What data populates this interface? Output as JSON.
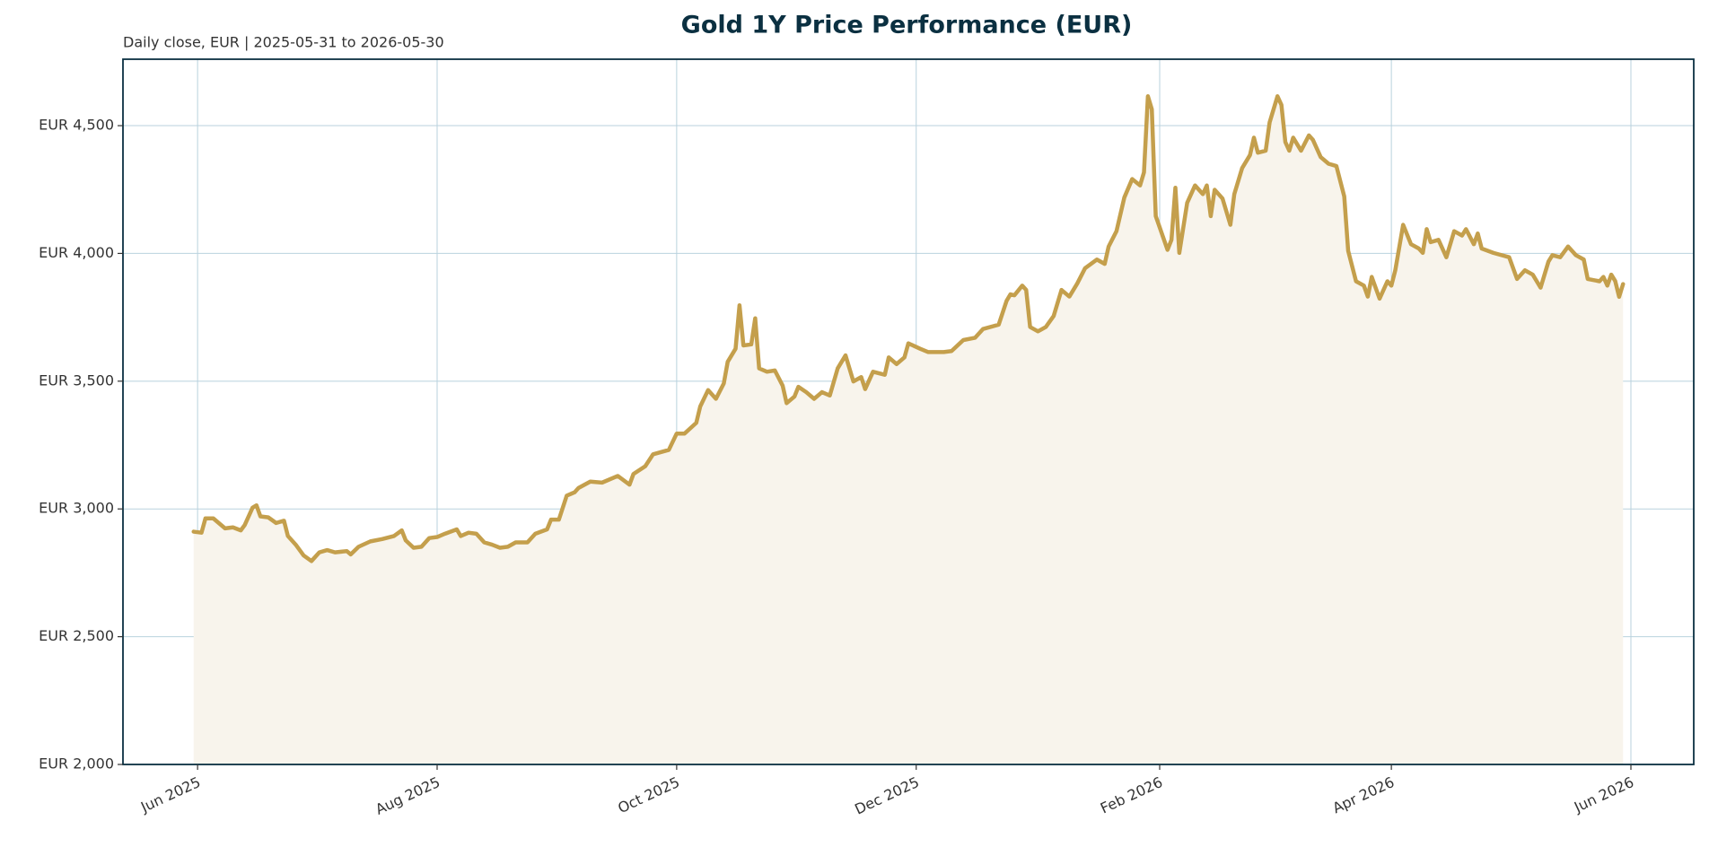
{
  "chart_data": {
    "type": "line",
    "title": "Gold 1Y Price Performance (EUR)",
    "subtitle": "Daily close, EUR | 2025-05-31 to 2026-05-30",
    "color": "#c49f4c",
    "fill_color": "#f8f4ec",
    "grid": true,
    "xlim": [
      "2025-05-13",
      "2026-06-17"
    ],
    "xticks": [
      {
        "value": "2025-06-01",
        "label": "Jun 2025"
      },
      {
        "value": "2025-08-01",
        "label": "Aug 2025"
      },
      {
        "value": "2025-10-01",
        "label": "Oct 2025"
      },
      {
        "value": "2025-12-01",
        "label": "Dec 2025"
      },
      {
        "value": "2026-02-01",
        "label": "Feb 2026"
      },
      {
        "value": "2026-04-01",
        "label": "Apr 2026"
      },
      {
        "value": "2026-06-01",
        "label": "Jun 2026"
      }
    ],
    "ylim": [
      2000,
      4760
    ],
    "yticks": [
      {
        "value": 2000,
        "label": "EUR 2,000"
      },
      {
        "value": 2500,
        "label": "EUR 2,500"
      },
      {
        "value": 3000,
        "label": "EUR 3,000"
      },
      {
        "value": 3500,
        "label": "EUR 3,500"
      },
      {
        "value": 4000,
        "label": "EUR 4,000"
      },
      {
        "value": 4500,
        "label": "EUR 4,500"
      }
    ],
    "x": [
      "2025-05-31",
      "2025-06-02",
      "2025-06-03",
      "2025-06-05",
      "2025-06-08",
      "2025-06-10",
      "2025-06-12",
      "2025-06-13",
      "2025-06-15",
      "2025-06-16",
      "2025-06-17",
      "2025-06-19",
      "2025-06-21",
      "2025-06-23",
      "2025-06-24",
      "2025-06-26",
      "2025-06-28",
      "2025-06-30",
      "2025-07-02",
      "2025-07-04",
      "2025-07-06",
      "2025-07-09",
      "2025-07-10",
      "2025-07-12",
      "2025-07-15",
      "2025-07-18",
      "2025-07-21",
      "2025-07-23",
      "2025-07-24",
      "2025-07-26",
      "2025-07-28",
      "2025-07-30",
      "2025-08-01",
      "2025-08-03",
      "2025-08-06",
      "2025-08-07",
      "2025-08-09",
      "2025-08-11",
      "2025-08-13",
      "2025-08-15",
      "2025-08-17",
      "2025-08-19",
      "2025-08-21",
      "2025-08-24",
      "2025-08-26",
      "2025-08-29",
      "2025-08-30",
      "2025-09-01",
      "2025-09-03",
      "2025-09-05",
      "2025-09-06",
      "2025-09-09",
      "2025-09-12",
      "2025-09-16",
      "2025-09-19",
      "2025-09-20",
      "2025-09-23",
      "2025-09-25",
      "2025-09-29",
      "2025-10-01",
      "2025-10-03",
      "2025-10-06",
      "2025-10-07",
      "2025-10-09",
      "2025-10-11",
      "2025-10-13",
      "2025-10-14",
      "2025-10-16",
      "2025-10-17",
      "2025-10-18",
      "2025-10-20",
      "2025-10-21",
      "2025-10-22",
      "2025-10-24",
      "2025-10-26",
      "2025-10-28",
      "2025-10-29",
      "2025-10-31",
      "2025-11-01",
      "2025-11-03",
      "2025-11-05",
      "2025-11-07",
      "2025-11-09",
      "2025-11-11",
      "2025-11-13",
      "2025-11-15",
      "2025-11-17",
      "2025-11-18",
      "2025-11-20",
      "2025-11-23",
      "2025-11-24",
      "2025-11-26",
      "2025-11-28",
      "2025-11-29",
      "2025-12-02",
      "2025-12-04",
      "2025-12-08",
      "2025-12-10",
      "2025-12-13",
      "2025-12-16",
      "2025-12-18",
      "2025-12-22",
      "2025-12-24",
      "2025-12-25",
      "2025-12-26",
      "2025-12-28",
      "2025-12-29",
      "2025-12-30",
      "2026-01-01",
      "2026-01-03",
      "2026-01-05",
      "2026-01-07",
      "2026-01-09",
      "2026-01-11",
      "2026-01-13",
      "2026-01-16",
      "2026-01-18",
      "2026-01-19",
      "2026-01-21",
      "2026-01-23",
      "2026-01-25",
      "2026-01-27",
      "2026-01-28",
      "2026-01-29",
      "2026-01-30",
      "2026-01-31",
      "2026-02-03",
      "2026-02-04",
      "2026-02-05",
      "2026-02-06",
      "2026-02-08",
      "2026-02-10",
      "2026-02-12",
      "2026-02-13",
      "2026-02-14",
      "2026-02-15",
      "2026-02-17",
      "2026-02-19",
      "2026-02-20",
      "2026-02-22",
      "2026-02-24",
      "2026-02-25",
      "2026-02-26",
      "2026-02-28",
      "2026-03-01",
      "2026-03-03",
      "2026-03-04",
      "2026-03-05",
      "2026-03-06",
      "2026-03-07",
      "2026-03-09",
      "2026-03-11",
      "2026-03-12",
      "2026-03-14",
      "2026-03-16",
      "2026-03-18",
      "2026-03-20",
      "2026-03-21",
      "2026-03-23",
      "2026-03-25",
      "2026-03-26",
      "2026-03-27",
      "2026-03-29",
      "2026-03-31",
      "2026-04-01",
      "2026-04-02",
      "2026-04-04",
      "2026-04-06",
      "2026-04-08",
      "2026-04-09",
      "2026-04-10",
      "2026-04-11",
      "2026-04-13",
      "2026-04-15",
      "2026-04-17",
      "2026-04-19",
      "2026-04-20",
      "2026-04-22",
      "2026-04-23",
      "2026-04-24",
      "2026-04-27",
      "2026-05-01",
      "2026-05-03",
      "2026-05-05",
      "2026-05-07",
      "2026-05-09",
      "2026-05-11",
      "2026-05-12",
      "2026-05-14",
      "2026-05-16",
      "2026-05-18",
      "2026-05-20",
      "2026-05-21",
      "2026-05-24",
      "2026-05-25",
      "2026-05-26",
      "2026-05-27",
      "2026-05-28",
      "2026-05-29",
      "2026-05-30"
    ],
    "values": [
      2911,
      2907,
      2963,
      2963,
      2924,
      2928,
      2916,
      2937,
      3005,
      3014,
      2971,
      2967,
      2945,
      2954,
      2894,
      2860,
      2818,
      2796,
      2830,
      2839,
      2830,
      2835,
      2822,
      2852,
      2873,
      2882,
      2894,
      2916,
      2877,
      2848,
      2852,
      2886,
      2890,
      2903,
      2920,
      2894,
      2907,
      2903,
      2869,
      2860,
      2848,
      2852,
      2869,
      2869,
      2903,
      2920,
      2958,
      2958,
      3052,
      3065,
      3082,
      3107,
      3103,
      3129,
      3095,
      3137,
      3167,
      3214,
      3231,
      3295,
      3295,
      3337,
      3401,
      3465,
      3431,
      3491,
      3576,
      3627,
      3797,
      3640,
      3644,
      3746,
      3550,
      3537,
      3542,
      3482,
      3414,
      3440,
      3478,
      3457,
      3431,
      3457,
      3444,
      3550,
      3601,
      3499,
      3516,
      3469,
      3537,
      3525,
      3593,
      3567,
      3593,
      3648,
      3627,
      3614,
      3614,
      3618,
      3661,
      3670,
      3704,
      3721,
      3814,
      3840,
      3836,
      3874,
      3857,
      3712,
      3695,
      3712,
      3755,
      3857,
      3831,
      3882,
      3942,
      3976,
      3959,
      4027,
      4087,
      4219,
      4291,
      4266,
      4317,
      4615,
      4564,
      4146,
      4014,
      4053,
      4257,
      4002,
      4198,
      4266,
      4232,
      4266,
      4146,
      4249,
      4215,
      4112,
      4232,
      4334,
      4385,
      4453,
      4394,
      4402,
      4513,
      4615,
      4581,
      4436,
      4402,
      4453,
      4402,
      4462,
      4445,
      4377,
      4351,
      4342,
      4223,
      4010,
      3891,
      3874,
      3831,
      3908,
      3823,
      3891,
      3874,
      3934,
      4112,
      4036,
      4019,
      4002,
      4095,
      4044,
      4053,
      3985,
      4087,
      4070,
      4095,
      4036,
      4078,
      4019,
      4002,
      3985,
      3900,
      3934,
      3917,
      3866,
      3968,
      3993,
      3985,
      4027,
      3993,
      3976,
      3900,
      3891,
      3908,
      3874,
      3917,
      3892,
      3830,
      3880
    ]
  }
}
